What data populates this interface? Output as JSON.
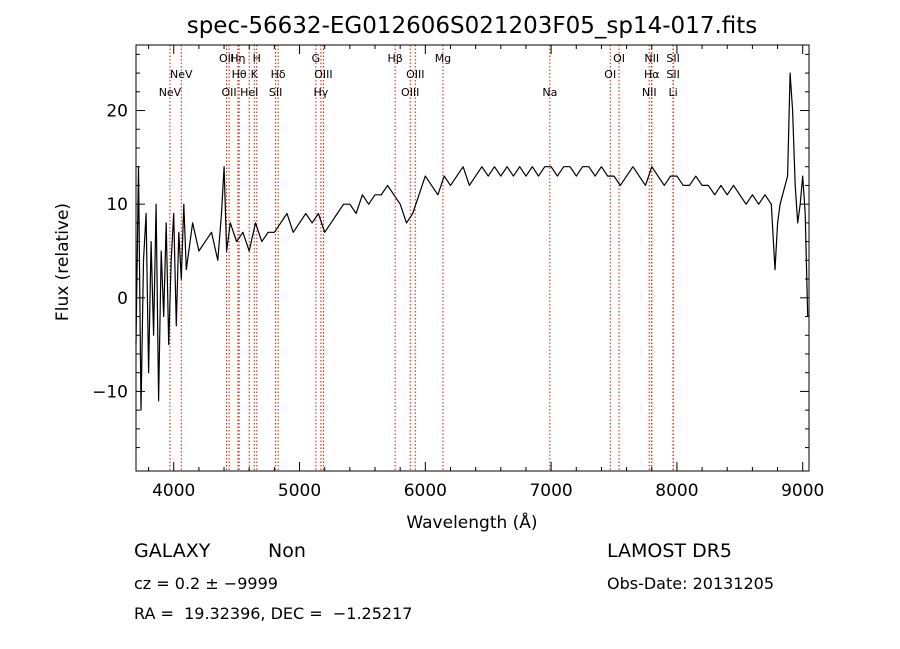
{
  "title": "spec-56632-EG012606S021203F05_sp14-017.fits",
  "chart_data": {
    "type": "line",
    "title": "spec-56632-EG012606S021203F05_sp14-017.fits",
    "xlabel": "Wavelength (Å)",
    "ylabel": "Flux (relative)",
    "xlim": [
      3700,
      9050
    ],
    "ylim": [
      -18.5,
      27
    ],
    "x_ticks": [
      4000,
      5000,
      6000,
      7000,
      8000,
      9000
    ],
    "x_tick_labels": [
      "4000",
      "5000",
      "6000",
      "7000",
      "8000",
      "9000"
    ],
    "y_ticks": [
      -10,
      0,
      10,
      20
    ],
    "y_tick_labels": [
      "−10",
      "0",
      "10",
      "20"
    ],
    "grid": false,
    "series": [
      {
        "color": "#000000",
        "x": [
          3700,
          3720,
          3740,
          3760,
          3780,
          3800,
          3820,
          3840,
          3860,
          3880,
          3900,
          3920,
          3940,
          3960,
          3980,
          4000,
          4020,
          4040,
          4060,
          4080,
          4100,
          4150,
          4200,
          4250,
          4300,
          4350,
          4380,
          4400,
          4420,
          4450,
          4500,
          4550,
          4600,
          4650,
          4700,
          4750,
          4800,
          4850,
          4900,
          4950,
          5000,
          5050,
          5100,
          5150,
          5200,
          5250,
          5300,
          5350,
          5400,
          5450,
          5500,
          5550,
          5600,
          5650,
          5700,
          5750,
          5800,
          5850,
          5900,
          5950,
          6000,
          6050,
          6100,
          6150,
          6200,
          6250,
          6300,
          6350,
          6400,
          6450,
          6500,
          6550,
          6600,
          6650,
          6700,
          6750,
          6800,
          6850,
          6900,
          6950,
          7000,
          7050,
          7100,
          7150,
          7200,
          7250,
          7300,
          7350,
          7400,
          7450,
          7500,
          7550,
          7600,
          7650,
          7700,
          7750,
          7800,
          7850,
          7900,
          7950,
          8000,
          8050,
          8100,
          8150,
          8200,
          8250,
          8300,
          8350,
          8400,
          8450,
          8500,
          8550,
          8600,
          8650,
          8700,
          8750,
          8780,
          8800,
          8820,
          8840,
          8860,
          8880,
          8900,
          8920,
          8940,
          8960,
          8980,
          9000,
          9020,
          9040
        ],
        "values": [
          -5,
          14,
          -12,
          4,
          9,
          -8,
          6,
          -4,
          10,
          -11,
          5,
          -2,
          8,
          -5,
          4,
          9,
          -3,
          7,
          2,
          10,
          3,
          8,
          5,
          6,
          7,
          4,
          9,
          14,
          5,
          8,
          6,
          7,
          5,
          8,
          6,
          7,
          7,
          8,
          9,
          7,
          8,
          9,
          8,
          9,
          7,
          8,
          9,
          10,
          10,
          9,
          11,
          10,
          11,
          11,
          12,
          11,
          10,
          8,
          9,
          11,
          13,
          12,
          11,
          13,
          12,
          13,
          14,
          12,
          13,
          14,
          13,
          14,
          13,
          14,
          13,
          14,
          13,
          14,
          13,
          14,
          14,
          13,
          14,
          14,
          13,
          14,
          14,
          13,
          14,
          13,
          13,
          12,
          13,
          14,
          13,
          12,
          14,
          13,
          12,
          13,
          13,
          12,
          12,
          13,
          12,
          12,
          11,
          12,
          11,
          12,
          11,
          10,
          11,
          10,
          11,
          10,
          3,
          8,
          10,
          11,
          12,
          13,
          24,
          20,
          12,
          8,
          10,
          13,
          9,
          -2
        ]
      }
    ],
    "lines": [
      {
        "label": "NeV",
        "x": 3970,
        "row": 2
      },
      {
        "label": "NeV",
        "x": 4060,
        "row": 1
      },
      {
        "label": "OII",
        "x": 4420,
        "row": 0
      },
      {
        "label": "OII",
        "x": 4440,
        "row": 2
      },
      {
        "label": "Hη",
        "x": 4510,
        "row": 0
      },
      {
        "label": "Hθ",
        "x": 4520,
        "row": 1
      },
      {
        "label": "HeI",
        "x": 4600,
        "row": 2
      },
      {
        "label": "H",
        "x": 4660,
        "row": 0
      },
      {
        "label": "K",
        "x": 4640,
        "row": 1
      },
      {
        "label": "Hδ",
        "x": 4830,
        "row": 1
      },
      {
        "label": "SII",
        "x": 4810,
        "row": 2
      },
      {
        "label": "G",
        "x": 5130,
        "row": 0
      },
      {
        "label": "OIII",
        "x": 5190,
        "row": 1
      },
      {
        "label": "Hγ",
        "x": 5170,
        "row": 2
      },
      {
        "label": "Hβ",
        "x": 5760,
        "row": 0
      },
      {
        "label": "OIII",
        "x": 5920,
        "row": 1
      },
      {
        "label": "OIII",
        "x": 5880,
        "row": 2
      },
      {
        "label": "Mg",
        "x": 6140,
        "row": 0
      },
      {
        "label": "Na",
        "x": 6990,
        "row": 2
      },
      {
        "label": "OI",
        "x": 7540,
        "row": 0
      },
      {
        "label": "OI",
        "x": 7470,
        "row": 1
      },
      {
        "label": "NII",
        "x": 7800,
        "row": 0
      },
      {
        "label": "Hα",
        "x": 7800,
        "row": 1
      },
      {
        "label": "NII",
        "x": 7780,
        "row": 2
      },
      {
        "label": "SII",
        "x": 7970,
        "row": 0
      },
      {
        "label": "SII",
        "x": 7970,
        "row": 1
      },
      {
        "label": "Li",
        "x": 7970,
        "row": 2
      }
    ],
    "line_color": "#cc2200"
  },
  "info": {
    "class": "GALAXY",
    "subclass": "Non",
    "cz": "cz = 0.2 ± −9999",
    "coords": "RA =  19.32396, DEC =  −1.25217",
    "survey": "LAMOST DR5",
    "obs_date": "Obs-Date: 20131205"
  }
}
